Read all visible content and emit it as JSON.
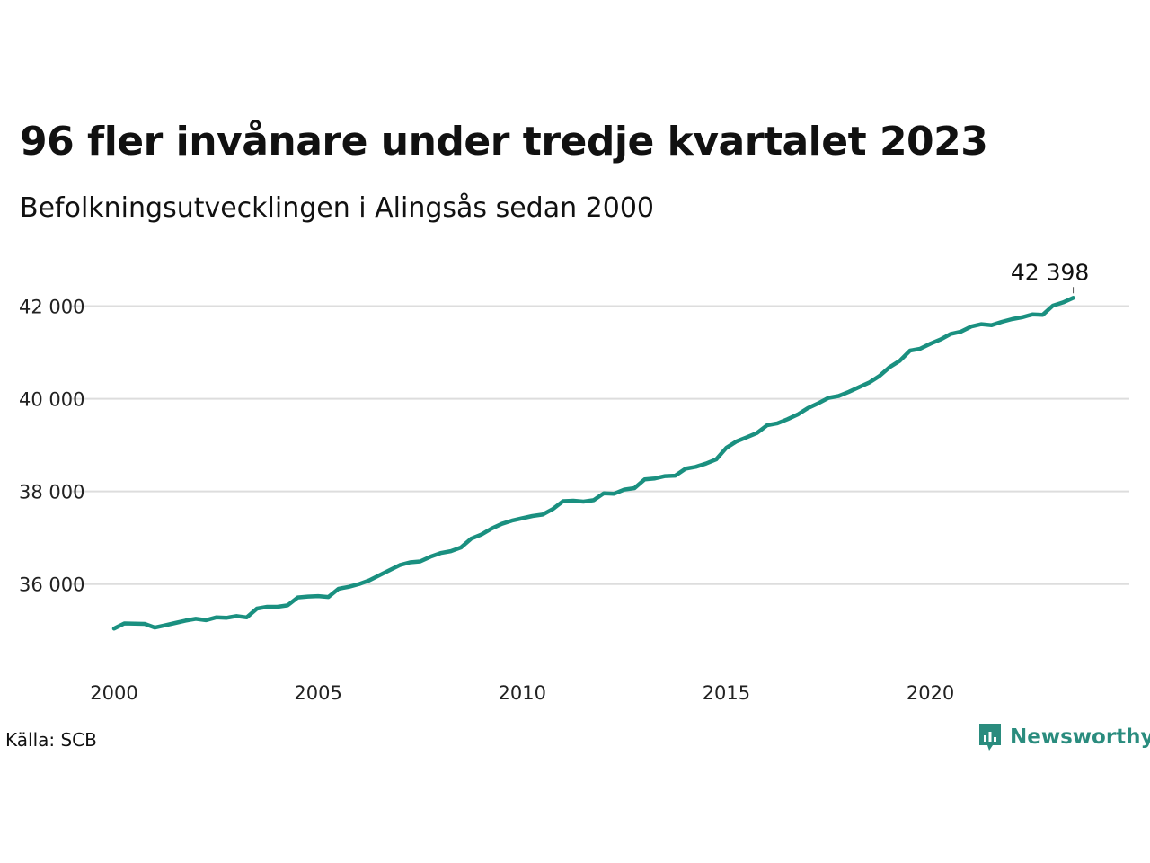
{
  "title": "96 fler invånare under tredje kvartalet 2023",
  "subtitle": "Befolkningsutvecklingen i Alingsås sedan 2000",
  "source": "Källa: SCB",
  "brand": {
    "name": "Newsworthy",
    "icon": "newsworthy-logo-icon",
    "color": "#2a8c7e"
  },
  "colors": {
    "line": "#1a9080",
    "grid": "#dddddd"
  },
  "chart_data": {
    "type": "line",
    "title": "96 fler invånare under tredje kvartalet 2023",
    "subtitle": "Befolkningsutvecklingen i Alingsås sedan 2000",
    "xlim": [
      2000,
      2024.5
    ],
    "ylim": [
      34500,
      43000
    ],
    "x_ticks": [
      2000,
      2005,
      2010,
      2015,
      2020
    ],
    "x_tick_labels": [
      "2000",
      "2005",
      "2010",
      "2015",
      "2020"
    ],
    "y_ticks": [
      36000,
      38000,
      40000,
      42000
    ],
    "y_tick_labels": [
      "36 000",
      "38 000",
      "40 000",
      "42 000"
    ],
    "grid": "horizontal",
    "end_label": "42 398",
    "series": [
      {
        "x": [
          2000.0,
          2000.25,
          2000.5,
          2000.75,
          2001.0,
          2001.25,
          2001.5,
          2001.75,
          2002.0,
          2002.25,
          2002.5,
          2002.75,
          2003.0,
          2003.25,
          2003.5,
          2003.75,
          2004.0,
          2004.25,
          2004.5,
          2004.75,
          2005.0,
          2005.25,
          2005.5,
          2005.75,
          2006.0,
          2006.25,
          2006.5,
          2006.75,
          2007.0,
          2007.25,
          2007.5,
          2007.75,
          2008.0,
          2008.25,
          2008.5,
          2008.75,
          2009.0,
          2009.25,
          2009.5,
          2009.75,
          2010.0,
          2010.25,
          2010.5,
          2010.75,
          2011.0,
          2011.25,
          2011.5,
          2011.75,
          2012.0,
          2012.25,
          2012.5,
          2012.75,
          2013.0,
          2013.25,
          2013.5,
          2013.75,
          2014.0,
          2014.25,
          2014.5,
          2014.75,
          2015.0,
          2015.25,
          2015.5,
          2015.75,
          2016.0,
          2016.25,
          2016.5,
          2016.75,
          2017.0,
          2017.25,
          2017.5,
          2017.75,
          2018.0,
          2018.25,
          2018.5,
          2018.75,
          2019.0,
          2019.25,
          2019.5,
          2019.75,
          2020.0,
          2020.25,
          2020.5,
          2020.75,
          2021.0,
          2021.25,
          2021.5,
          2021.75,
          2022.0,
          2022.25,
          2022.5,
          2022.75,
          2023.0,
          2023.25,
          2023.5
        ],
        "y": [
          35040,
          35150,
          35145,
          35140,
          35060,
          35110,
          35160,
          35210,
          35250,
          35220,
          35280,
          35270,
          35310,
          35280,
          35470,
          35510,
          35510,
          35540,
          35710,
          35730,
          35740,
          35720,
          35900,
          35940,
          36000,
          36080,
          36190,
          36300,
          36410,
          36470,
          36490,
          36590,
          36670,
          36710,
          36790,
          36980,
          37070,
          37200,
          37300,
          37370,
          37420,
          37470,
          37500,
          37620,
          37790,
          37800,
          37780,
          37810,
          37960,
          37950,
          38040,
          38070,
          38260,
          38280,
          38330,
          38340,
          38490,
          38530,
          38600,
          38690,
          38940,
          39080,
          39170,
          39260,
          39430,
          39470,
          39560,
          39660,
          39800,
          39900,
          40020,
          40060,
          40150,
          40250,
          40350,
          40490,
          40680,
          40820,
          41040,
          41080,
          41190,
          41280,
          41400,
          41450,
          41560,
          41610,
          41590,
          41660,
          41720,
          41760,
          41820,
          41810,
          42010,
          42080,
          42180
        ]
      }
    ]
  }
}
